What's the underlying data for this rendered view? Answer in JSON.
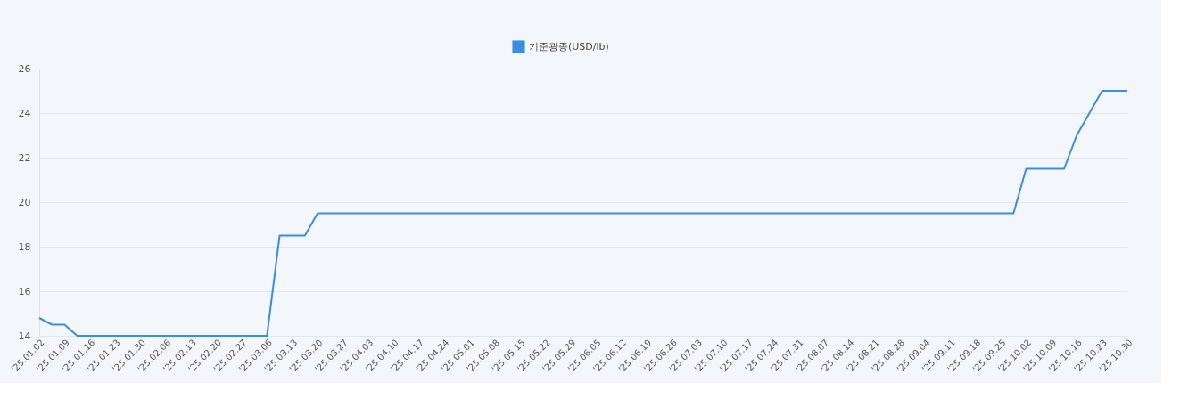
{
  "chart_data": {
    "type": "line",
    "categories": [
      "'25.01.02",
      null,
      "'25.01.09",
      null,
      "'25.01.16",
      null,
      "'25.01.23",
      null,
      "'25.01.30",
      null,
      "'25.02.06",
      null,
      "'25.02.13",
      null,
      "'25.02.20",
      null,
      "'25.02.27",
      null,
      "'25.03.06",
      null,
      "'25.03.13",
      null,
      "'25.03.20",
      null,
      "'25.03.27",
      null,
      "'25.04.03",
      null,
      "'25.04.10",
      null,
      "'25.04.17",
      null,
      "'25.04.24",
      null,
      "'25.05.01",
      null,
      "'25.05.08",
      null,
      "'25.05.15",
      null,
      "'25.05.22",
      null,
      "'25.05.29",
      null,
      "'25.06.05",
      null,
      "'25.06.12",
      null,
      "'25.06.19",
      null,
      "'25.06.26",
      null,
      "'25.07.03",
      null,
      "'25.07.10",
      null,
      "'25.07.17",
      null,
      "'25.07.24",
      null,
      "'25.07.31",
      null,
      "'25.08.07",
      null,
      "'25.08.14",
      null,
      "'25.08.21",
      null,
      "'25.08.28",
      null,
      "'25.09.04",
      null,
      "'25.09.11",
      null,
      "'25.09.18",
      null,
      "'25.09.25",
      null,
      "'25.10.02",
      null,
      "'25.10.09",
      null,
      "'25.10.16",
      null,
      "'25.10.23",
      null,
      "'25.10.30"
    ],
    "series": [
      {
        "name": "기준광종(USD/lb)",
        "color": "#3a8ee0",
        "values": [
          14.8,
          14.5,
          14.5,
          14,
          14,
          14,
          14,
          14,
          14,
          14,
          14,
          14,
          14,
          14,
          14,
          14,
          14,
          14,
          14,
          18.5,
          18.5,
          18.5,
          19.5,
          19.5,
          19.5,
          19.5,
          19.5,
          19.5,
          19.5,
          19.5,
          19.5,
          19.5,
          19.5,
          19.5,
          19.5,
          19.5,
          19.5,
          19.5,
          19.5,
          19.5,
          19.5,
          19.5,
          19.5,
          19.5,
          19.5,
          19.5,
          19.5,
          19.5,
          19.5,
          19.5,
          19.5,
          19.5,
          19.5,
          19.5,
          19.5,
          19.5,
          19.5,
          19.5,
          19.5,
          19.5,
          19.5,
          19.5,
          19.5,
          19.5,
          19.5,
          19.5,
          19.5,
          19.5,
          19.5,
          19.5,
          19.5,
          19.5,
          19.5,
          19.5,
          19.5,
          19.5,
          19.5,
          19.5,
          21.5,
          21.5,
          21.5,
          21.5,
          23,
          24,
          25,
          25,
          25
        ]
      }
    ],
    "ylim": [
      14,
      26
    ],
    "yticks": [
      14,
      16,
      18,
      20,
      22,
      24,
      26
    ],
    "grid": "y",
    "legend": "top",
    "marker": "none",
    "line_style": "solid"
  }
}
